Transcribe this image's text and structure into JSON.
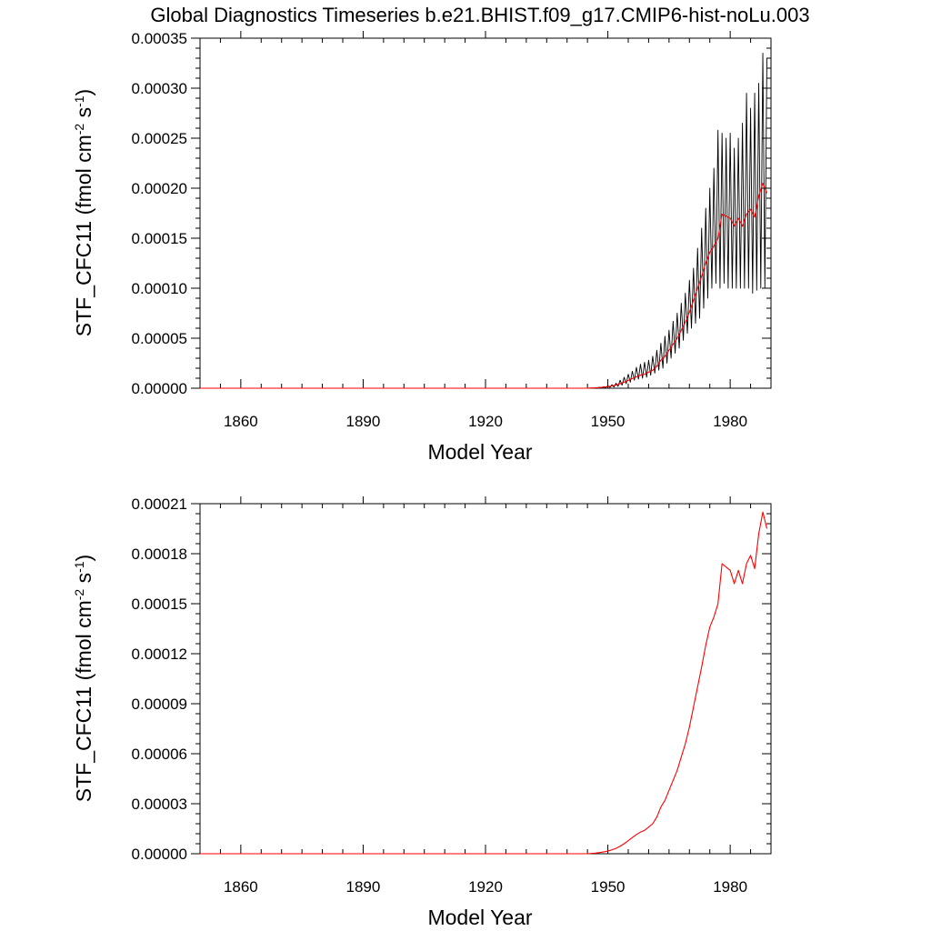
{
  "page_title": "Global Diagnostics Timeseries b.e21.BHIST.f09_g17.CMIP6-hist-noLu.003",
  "colors": {
    "axis": "#000000",
    "monthly_series": "#000000",
    "annual_series": "#ff0000",
    "background": "#ffffff"
  },
  "chart_data": [
    {
      "type": "line",
      "xlabel": "Model Year",
      "ylabel": "STF_CFC11 (fmol cm-2 s-1)",
      "ylabel_parts": {
        "main": "STF_CFC11 (fmol cm",
        "exp1": "-2",
        "mid": " s",
        "exp2": "-1",
        "end": ")"
      },
      "xlim": [
        1850,
        1990
      ],
      "ylim": [
        0,
        0.00035
      ],
      "x_ticks": [
        1860,
        1890,
        1920,
        1950,
        1980
      ],
      "x_tick_labels": [
        "1860",
        "1890",
        "1920",
        "1950",
        "1980"
      ],
      "y_ticks": [
        0,
        5e-05,
        0.0001,
        0.00015,
        0.0002,
        0.00025,
        0.0003,
        0.00035
      ],
      "y_tick_labels": [
        "0.00000",
        "0.00005",
        "0.00010",
        "0.00015",
        "0.00020",
        "0.00025",
        "0.00030",
        "0.00035"
      ],
      "grid": false,
      "series": [
        {
          "kind": "monthly",
          "color": "#000000",
          "x": [
            1850,
            1945,
            1946,
            1946.5,
            1947,
            1947.5,
            1948,
            1948.5,
            1949,
            1949.5,
            1950,
            1950.5,
            1951,
            1951.5,
            1952,
            1952.5,
            1953,
            1953.5,
            1954,
            1954.5,
            1955,
            1955.5,
            1956,
            1956.5,
            1957,
            1957.5,
            1958,
            1958.5,
            1959,
            1959.5,
            1960,
            1960.5,
            1961,
            1961.5,
            1962,
            1962.5,
            1963,
            1963.5,
            1964,
            1964.5,
            1965,
            1965.5,
            1966,
            1966.5,
            1967,
            1967.5,
            1968,
            1968.5,
            1969,
            1969.5,
            1970,
            1970.5,
            1971,
            1971.5,
            1972,
            1972.5,
            1973,
            1973.5,
            1974,
            1974.5,
            1975,
            1975.5,
            1976,
            1976.5,
            1977,
            1977.5,
            1978,
            1978.5,
            1979,
            1979.5,
            1980,
            1980.5,
            1981,
            1981.5,
            1982,
            1982.5,
            1983,
            1983.5,
            1984,
            1984.5,
            1985,
            1985.5,
            1986,
            1986.5,
            1987,
            1987.5,
            1988,
            1988.5,
            1989
          ],
          "y": [
            0,
            0,
            3e-07,
            1e-07,
            6e-07,
            2e-07,
            1e-06,
            4e-07,
            1.6e-06,
            6e-07,
            2.5e-06,
            8e-07,
            3.5e-06,
            1.2e-06,
            5e-06,
            1.8e-06,
            8e-06,
            3e-06,
            1.1e-05,
            4.5e-06,
            1.4e-05,
            6e-06,
            1.7e-05,
            8e-06,
            2.1e-05,
            9e-06,
            2.4e-05,
            1e-05,
            2.6e-05,
            1.1e-05,
            2.8e-05,
            1.3e-05,
            3.2e-05,
            1.5e-05,
            3.8e-05,
            1.8e-05,
            4.5e-05,
            2e-05,
            5.2e-05,
            2.5e-05,
            5.8e-05,
            3e-05,
            6.7e-05,
            3.5e-05,
            7.5e-05,
            4e-05,
            8.5e-05,
            4.8e-05,
            9.5e-05,
            5.5e-05,
            0.000108,
            6e-05,
            0.00012,
            6.5e-05,
            0.00014,
            7e-05,
            0.00016,
            8e-05,
            0.00018,
            9e-05,
            0.0002,
            0.0001,
            0.00022,
            0.000105,
            0.000258,
            0.0001,
            0.000255,
            0.000105,
            0.00025,
            0.0001,
            0.000255,
            0.0001,
            0.00024,
            0.0001,
            0.00025,
            0.0001,
            0.000265,
            0.0001,
            0.000295,
            0.0001,
            0.00028,
            9.5e-05,
            0.000295,
            9.8e-05,
            0.000305,
            0.0001,
            0.000335,
            0.0001,
            0.00033
          ]
        },
        {
          "kind": "annual",
          "color": "#ff0000",
          "x": [
            1850,
            1945,
            1946,
            1947,
            1948,
            1949,
            1950,
            1951,
            1952,
            1953,
            1954,
            1955,
            1956,
            1957,
            1958,
            1959,
            1960,
            1961,
            1962,
            1963,
            1964,
            1965,
            1966,
            1967,
            1968,
            1969,
            1970,
            1971,
            1972,
            1973,
            1974,
            1975,
            1976,
            1977,
            1978,
            1979,
            1980,
            1981,
            1982,
            1983,
            1984,
            1985,
            1986,
            1987,
            1988,
            1989
          ],
          "y": [
            0,
            0,
            2e-07,
            4e-07,
            7e-07,
            1.1e-06,
            1.6e-06,
            2.3e-06,
            3.2e-06,
            4.5e-06,
            6e-06,
            7.8e-06,
            9.7e-06,
            1.15e-05,
            1.3e-05,
            1.4e-05,
            1.6e-05,
            1.8e-05,
            2.2e-05,
            2.8e-05,
            3.2e-05,
            3.8e-05,
            4.4e-05,
            5e-05,
            5.8e-05,
            6.6e-05,
            7.6e-05,
            8.8e-05,
            0.0001,
            0.000112,
            0.000125,
            0.000136,
            0.000142,
            0.00015,
            0.000174,
            0.000172,
            0.00017,
            0.000162,
            0.00017,
            0.000162,
            0.000174,
            0.000179,
            0.000171,
            0.000192,
            0.000205,
            0.000195
          ]
        }
      ]
    },
    {
      "type": "line",
      "xlabel": "Model Year",
      "ylabel": "STF_CFC11 (fmol cm-2 s-1)",
      "ylabel_parts": {
        "main": "STF_CFC11 (fmol cm",
        "exp1": "-2",
        "mid": " s",
        "exp2": "-1",
        "end": ")"
      },
      "xlim": [
        1850,
        1990
      ],
      "ylim": [
        0,
        0.00021
      ],
      "x_ticks": [
        1860,
        1890,
        1920,
        1950,
        1980
      ],
      "x_tick_labels": [
        "1860",
        "1890",
        "1920",
        "1950",
        "1980"
      ],
      "y_ticks": [
        0,
        3e-05,
        6e-05,
        9e-05,
        0.00012,
        0.00015,
        0.00018,
        0.00021
      ],
      "y_tick_labels": [
        "0.00000",
        "0.00003",
        "0.00006",
        "0.00009",
        "0.00012",
        "0.00015",
        "0.00018",
        "0.00021"
      ],
      "grid": false,
      "series": [
        {
          "kind": "annual",
          "color": "#ff0000",
          "x": [
            1850,
            1945,
            1946,
            1947,
            1948,
            1949,
            1950,
            1951,
            1952,
            1953,
            1954,
            1955,
            1956,
            1957,
            1958,
            1959,
            1960,
            1961,
            1962,
            1963,
            1964,
            1965,
            1966,
            1967,
            1968,
            1969,
            1970,
            1971,
            1972,
            1973,
            1974,
            1975,
            1976,
            1977,
            1978,
            1979,
            1980,
            1981,
            1982,
            1983,
            1984,
            1985,
            1986,
            1987,
            1988,
            1989
          ],
          "y": [
            0,
            0,
            2e-07,
            4e-07,
            7e-07,
            1.1e-06,
            1.6e-06,
            2.3e-06,
            3.2e-06,
            4.5e-06,
            6e-06,
            7.8e-06,
            9.7e-06,
            1.15e-05,
            1.3e-05,
            1.4e-05,
            1.6e-05,
            1.8e-05,
            2.2e-05,
            2.8e-05,
            3.2e-05,
            3.8e-05,
            4.4e-05,
            5e-05,
            5.8e-05,
            6.6e-05,
            7.6e-05,
            8.8e-05,
            0.0001,
            0.000112,
            0.000125,
            0.000136,
            0.000142,
            0.00015,
            0.000174,
            0.000172,
            0.00017,
            0.000162,
            0.00017,
            0.000162,
            0.000174,
            0.000179,
            0.000171,
            0.000192,
            0.000205,
            0.000195
          ]
        }
      ]
    }
  ]
}
